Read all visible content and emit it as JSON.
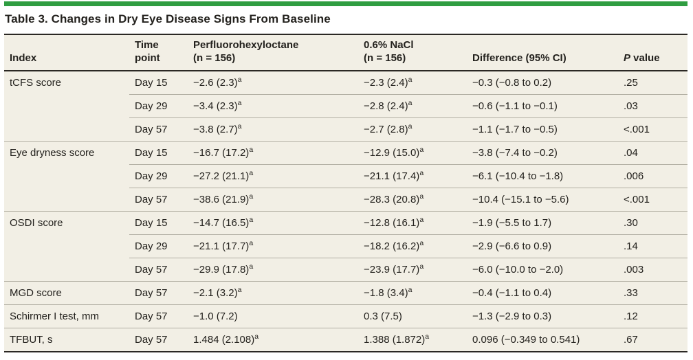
{
  "title": "Table 3. Changes in Dry Eye Disease Signs From Baseline",
  "colors": {
    "accent_green": "#2f9d41",
    "table_background": "#f2efe5",
    "rule_dark": "#2b2824",
    "rule_light": "#b1aea2",
    "text": "#23211d"
  },
  "table": {
    "header": {
      "index": "Index",
      "time_line1": "Time",
      "time_line2": "point",
      "pfho_line1": "Perfluorohexyloctane",
      "pfho_line2": "(n = 156)",
      "nacl_line1": "0.6% NaCl",
      "nacl_line2": "(n = 156)",
      "diff": "Difference (95% CI)",
      "p_italic": "P",
      "p_rest": " value"
    },
    "rows": [
      {
        "index": "tCFS score",
        "time": "Day 15",
        "pfho": "−2.6 (2.3)",
        "pfho_sup": "a",
        "nacl": "−2.3 (2.4)",
        "nacl_sup": "a",
        "diff": "−0.3 (−0.8 to 0.2)",
        "p": ".25",
        "group_start": true
      },
      {
        "index": "",
        "time": "Day 29",
        "pfho": "−3.4 (2.3)",
        "pfho_sup": "a",
        "nacl": "−2.8 (2.4)",
        "nacl_sup": "a",
        "diff": "−0.6 (−1.1 to −0.1)",
        "p": ".03",
        "group_start": false
      },
      {
        "index": "",
        "time": "Day 57",
        "pfho": "−3.8 (2.7)",
        "pfho_sup": "a",
        "nacl": "−2.7 (2.8)",
        "nacl_sup": "a",
        "diff": "−1.1 (−1.7 to −0.5)",
        "p": "<.001",
        "group_start": false
      },
      {
        "index": "Eye dryness score",
        "time": "Day 15",
        "pfho": "−16.7 (17.2)",
        "pfho_sup": "a",
        "nacl": "−12.9 (15.0)",
        "nacl_sup": "a",
        "diff": "−3.8 (−7.4 to −0.2)",
        "p": ".04",
        "group_start": true
      },
      {
        "index": "",
        "time": "Day 29",
        "pfho": "−27.2 (21.1)",
        "pfho_sup": "a",
        "nacl": "−21.1 (17.4)",
        "nacl_sup": "a",
        "diff": "−6.1 (−10.4 to −1.8)",
        "p": ".006",
        "group_start": false
      },
      {
        "index": "",
        "time": "Day 57",
        "pfho": "−38.6 (21.9)",
        "pfho_sup": "a",
        "nacl": "−28.3 (20.8)",
        "nacl_sup": "a",
        "diff": "−10.4 (−15.1 to −5.6)",
        "p": "<.001",
        "group_start": false
      },
      {
        "index": "OSDI score",
        "time": "Day 15",
        "pfho": "−14.7 (16.5)",
        "pfho_sup": "a",
        "nacl": "−12.8 (16.1)",
        "nacl_sup": "a",
        "diff": "−1.9 (−5.5 to 1.7)",
        "p": ".30",
        "group_start": true
      },
      {
        "index": "",
        "time": "Day 29",
        "pfho": "−21.1 (17.7)",
        "pfho_sup": "a",
        "nacl": "−18.2 (16.2)",
        "nacl_sup": "a",
        "diff": "−2.9 (−6.6 to 0.9)",
        "p": ".14",
        "group_start": false
      },
      {
        "index": "",
        "time": "Day 57",
        "pfho": "−29.9 (17.8)",
        "pfho_sup": "a",
        "nacl": "−23.9 (17.7)",
        "nacl_sup": "a",
        "diff": "−6.0 (−10.0 to −2.0)",
        "p": ".003",
        "group_start": false
      },
      {
        "index": "MGD score",
        "time": "Day 57",
        "pfho": "−2.1 (3.2)",
        "pfho_sup": "a",
        "nacl": "−1.8 (3.4)",
        "nacl_sup": "a",
        "diff": "−0.4 (−1.1 to 0.4)",
        "p": ".33",
        "group_start": true
      },
      {
        "index": "Schirmer I test, mm",
        "time": "Day 57",
        "pfho": "−1.0 (7.2)",
        "pfho_sup": "",
        "nacl": "0.3 (7.5)",
        "nacl_sup": "",
        "diff": "−1.3 (−2.9 to 0.3)",
        "p": ".12",
        "group_start": true
      },
      {
        "index": "TFBUT, s",
        "time": "Day 57",
        "pfho": "1.484 (2.108)",
        "pfho_sup": "a",
        "nacl": "1.388 (1.872)",
        "nacl_sup": "a",
        "diff": "0.096 (−0.349 to 0.541)",
        "p": ".67",
        "group_start": true
      }
    ]
  }
}
